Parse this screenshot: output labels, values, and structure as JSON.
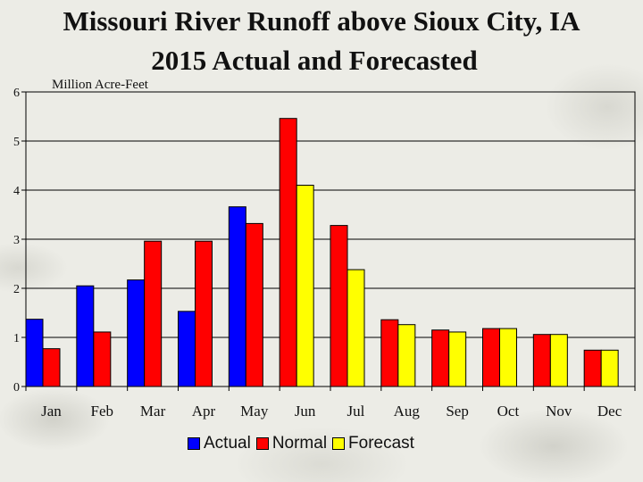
{
  "chart_data": {
    "type": "bar",
    "title": "Missouri River Runoff above Sioux City, IA",
    "subtitle": "2015 Actual and Forecasted",
    "ylabel": "Million Acre-Feet",
    "xlabel": "",
    "ylim": [
      0,
      6
    ],
    "yticks": [
      "0",
      "1",
      "2",
      "3",
      "4",
      "5",
      "6"
    ],
    "grid": true,
    "legend_position": "bottom",
    "categories": [
      "Jan",
      "Feb",
      "Mar",
      "Apr",
      "May",
      "Jun",
      "Jul",
      "Aug",
      "Sep",
      "Oct",
      "Nov",
      "Dec"
    ],
    "series": [
      {
        "name": "Actual",
        "color": "#0000ff",
        "values": [
          1.37,
          2.05,
          2.17,
          1.53,
          3.66,
          null,
          null,
          null,
          null,
          null,
          null,
          null
        ]
      },
      {
        "name": "Normal",
        "color": "#ff0000",
        "values": [
          0.77,
          1.11,
          2.96,
          2.96,
          3.32,
          5.46,
          3.28,
          1.36,
          1.15,
          1.18,
          1.06,
          0.74
        ]
      },
      {
        "name": "Forecast",
        "color": "#ffff00",
        "values": [
          null,
          null,
          null,
          null,
          null,
          4.1,
          2.38,
          1.26,
          1.11,
          1.18,
          1.06,
          0.74
        ]
      }
    ]
  }
}
